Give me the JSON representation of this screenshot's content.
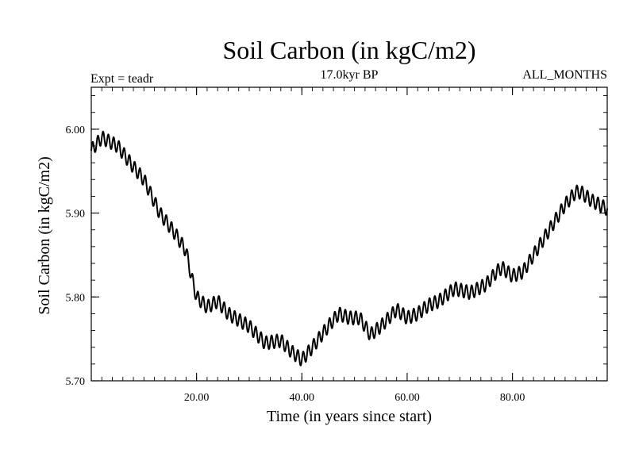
{
  "chart_data": {
    "type": "line",
    "title": "Soil Carbon (in kgC/m2)",
    "subtitle": "17.0kyr BP",
    "left_annotation": "Expt = teadr",
    "right_annotation": "ALL_MONTHS",
    "xlabel": "Time (in years since start)",
    "ylabel": "Soil Carbon (in kgC/m2)",
    "xlim": [
      0,
      98
    ],
    "ylim": [
      5.7,
      6.05
    ],
    "xticks": [
      20,
      40,
      60,
      80
    ],
    "xtick_labels": [
      "20.00",
      "40.00",
      "60.00",
      "80.00"
    ],
    "yticks": [
      5.7,
      5.8,
      5.9,
      6.0
    ],
    "ytick_labels": [
      "5.70",
      "5.80",
      "5.90",
      "6.00"
    ],
    "x_minor_step": 2,
    "y_minor_step": 0.02,
    "series": [
      {
        "name": "Soil Carbon",
        "color": "#000000",
        "trend_x": [
          0,
          2,
          5,
          8,
          10,
          13,
          16,
          18,
          19,
          20,
          22,
          24,
          26,
          30,
          33,
          36,
          38,
          40,
          42,
          45,
          47,
          49,
          51,
          53,
          55,
          58,
          60,
          62,
          64,
          66,
          69,
          72,
          75,
          77,
          78,
          80,
          82,
          84,
          86,
          88,
          90,
          92,
          93,
          95,
          98
        ],
        "trend_y": [
          5.975,
          5.99,
          5.98,
          5.955,
          5.94,
          5.9,
          5.875,
          5.855,
          5.825,
          5.8,
          5.788,
          5.795,
          5.78,
          5.765,
          5.745,
          5.748,
          5.735,
          5.725,
          5.74,
          5.765,
          5.78,
          5.775,
          5.775,
          5.755,
          5.765,
          5.785,
          5.775,
          5.78,
          5.79,
          5.795,
          5.81,
          5.805,
          5.815,
          5.83,
          5.835,
          5.825,
          5.83,
          5.85,
          5.87,
          5.89,
          5.91,
          5.925,
          5.925,
          5.915,
          5.905
        ],
        "oscillation_amplitude": 0.008,
        "oscillation_period_years": 1.0
      }
    ]
  }
}
